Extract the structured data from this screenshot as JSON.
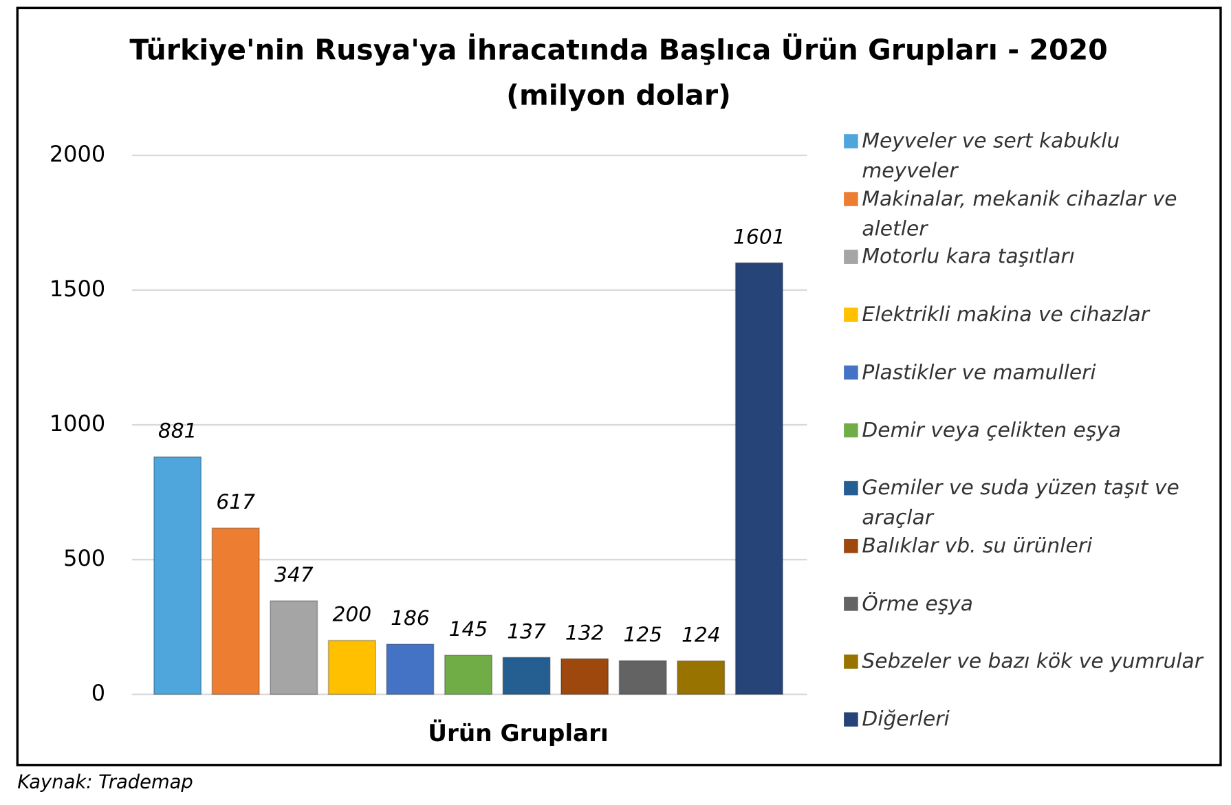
{
  "chart_data": {
    "type": "bar",
    "title": "Türkiye'nin Rusya'ya İhracatında Başlıca Ürün Grupları - 2020",
    "subtitle": "(milyon dolar)",
    "x_label": "Ürün Grupları",
    "categories": [
      "Meyveler ve sert kabuklu meyveler",
      "Makinalar, mekanik cihazlar ve aletler",
      "Motorlu kara taşıtları",
      "Elektrikli makina ve cihazlar",
      "Plastikler ve mamulleri",
      "Demir veya çelikten eşya",
      "Gemiler ve suda yüzen taşıt ve araçlar",
      "Balıklar vb. su ürünleri",
      "Örme eşya",
      "Sebzeler ve bazı kök ve yumrular",
      "Diğerleri"
    ],
    "values": [
      881,
      617,
      347,
      200,
      186,
      145,
      137,
      132,
      125,
      124,
      1601
    ],
    "colors": [
      "#4ea6dc",
      "#ed7d31",
      "#a5a5a5",
      "#ffc000",
      "#4472c4",
      "#70ad47",
      "#255e91",
      "#9e480e",
      "#636363",
      "#997300",
      "#264478"
    ],
    "ylim": [
      0,
      2000
    ],
    "yticks": [
      0,
      500,
      1000,
      1500,
      2000
    ],
    "grid": true,
    "legend": "right"
  },
  "source": "Kaynak: Trademap"
}
